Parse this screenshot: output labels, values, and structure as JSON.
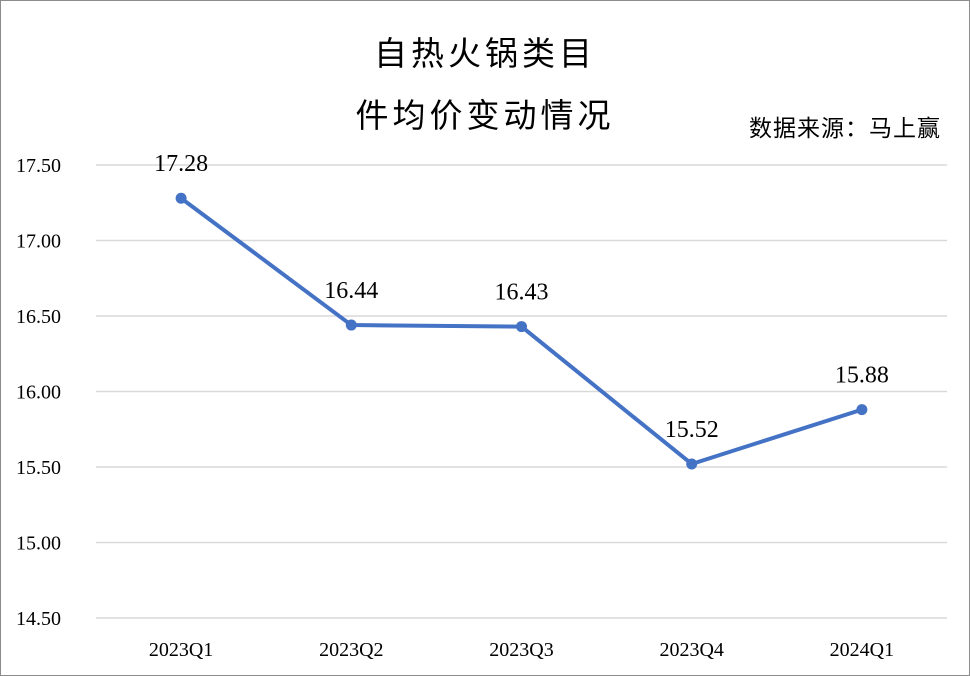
{
  "chart_data": {
    "type": "line",
    "title_lines": [
      "自热火锅类目",
      "件均价变动情况"
    ],
    "source_note": "数据来源：马上赢",
    "categories": [
      "2023Q1",
      "2023Q2",
      "2023Q3",
      "2023Q4",
      "2024Q1"
    ],
    "series": [
      {
        "values": [
          17.28,
          16.44,
          16.43,
          15.52,
          15.88
        ],
        "value_labels": [
          "17.28",
          "16.44",
          "16.43",
          "15.52",
          "15.88"
        ],
        "color": "#4472C4"
      }
    ],
    "y_ticks": [
      "14.50",
      "15.00",
      "15.50",
      "16.00",
      "16.50",
      "17.00",
      "17.50"
    ],
    "ylim": [
      14.5,
      17.5
    ],
    "grid": true,
    "gridline_color": "#d9d9d9"
  }
}
